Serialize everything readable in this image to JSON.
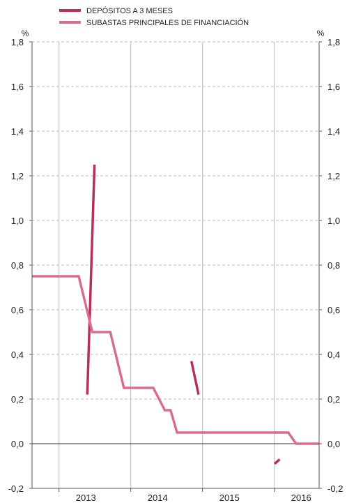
{
  "chart_data": {
    "type": "line",
    "title": "",
    "xlabel": "",
    "ylabel": "",
    "y_unit_label": "%",
    "ylim": [
      -0.2,
      1.8
    ],
    "yticks": [
      -0.2,
      0.0,
      0.2,
      0.4,
      0.6,
      0.8,
      1.0,
      1.2,
      1.4,
      1.6,
      1.8
    ],
    "ytick_labels": [
      "-0,2",
      "0,0",
      "0,2",
      "0,4",
      "0,6",
      "0,8",
      "1,0",
      "1,2",
      "1,4",
      "1,6",
      "1,8"
    ],
    "xlim": [
      2012.25,
      2016.25
    ],
    "x_year_labels": [
      {
        "label": "2013",
        "x": 2013.0
      },
      {
        "label": "2014",
        "x": 2014.0
      },
      {
        "label": "2015",
        "x": 2015.0
      },
      {
        "label": "2016",
        "x": 2016.0
      }
    ],
    "x_gridlines": [
      2012.625,
      2013.625,
      2014.625,
      2015.625
    ],
    "grid": {
      "horizontal": "dashed",
      "vertical": "solid"
    },
    "legend_position": "top-left",
    "series": [
      {
        "name": "DEPÓSITOS A 3 MESES",
        "color": "#b5305c",
        "segments": [
          [
            [
              2013.02,
              0.22
            ],
            [
              2013.12,
              1.25
            ]
          ],
          [
            [
              2014.47,
              0.37
            ],
            [
              2014.57,
              0.22
            ]
          ],
          [
            [
              2015.63,
              -0.09
            ],
            [
              2015.7,
              -0.07
            ]
          ]
        ]
      },
      {
        "name": "SUBASTAS PRINCIPALES DE FINANCIACIÓN",
        "color": "#d86e8c",
        "x": [
          2012.25,
          2012.9,
          2013.09,
          2013.34,
          2013.34,
          2013.53,
          2013.94,
          2014.1,
          2014.18,
          2014.27,
          2014.27,
          2015.82,
          2015.93,
          2016.25
        ],
        "y": [
          0.75,
          0.75,
          0.5,
          0.5,
          0.5,
          0.25,
          0.25,
          0.15,
          0.15,
          0.05,
          0.05,
          0.05,
          0.0,
          0.0
        ]
      }
    ]
  }
}
